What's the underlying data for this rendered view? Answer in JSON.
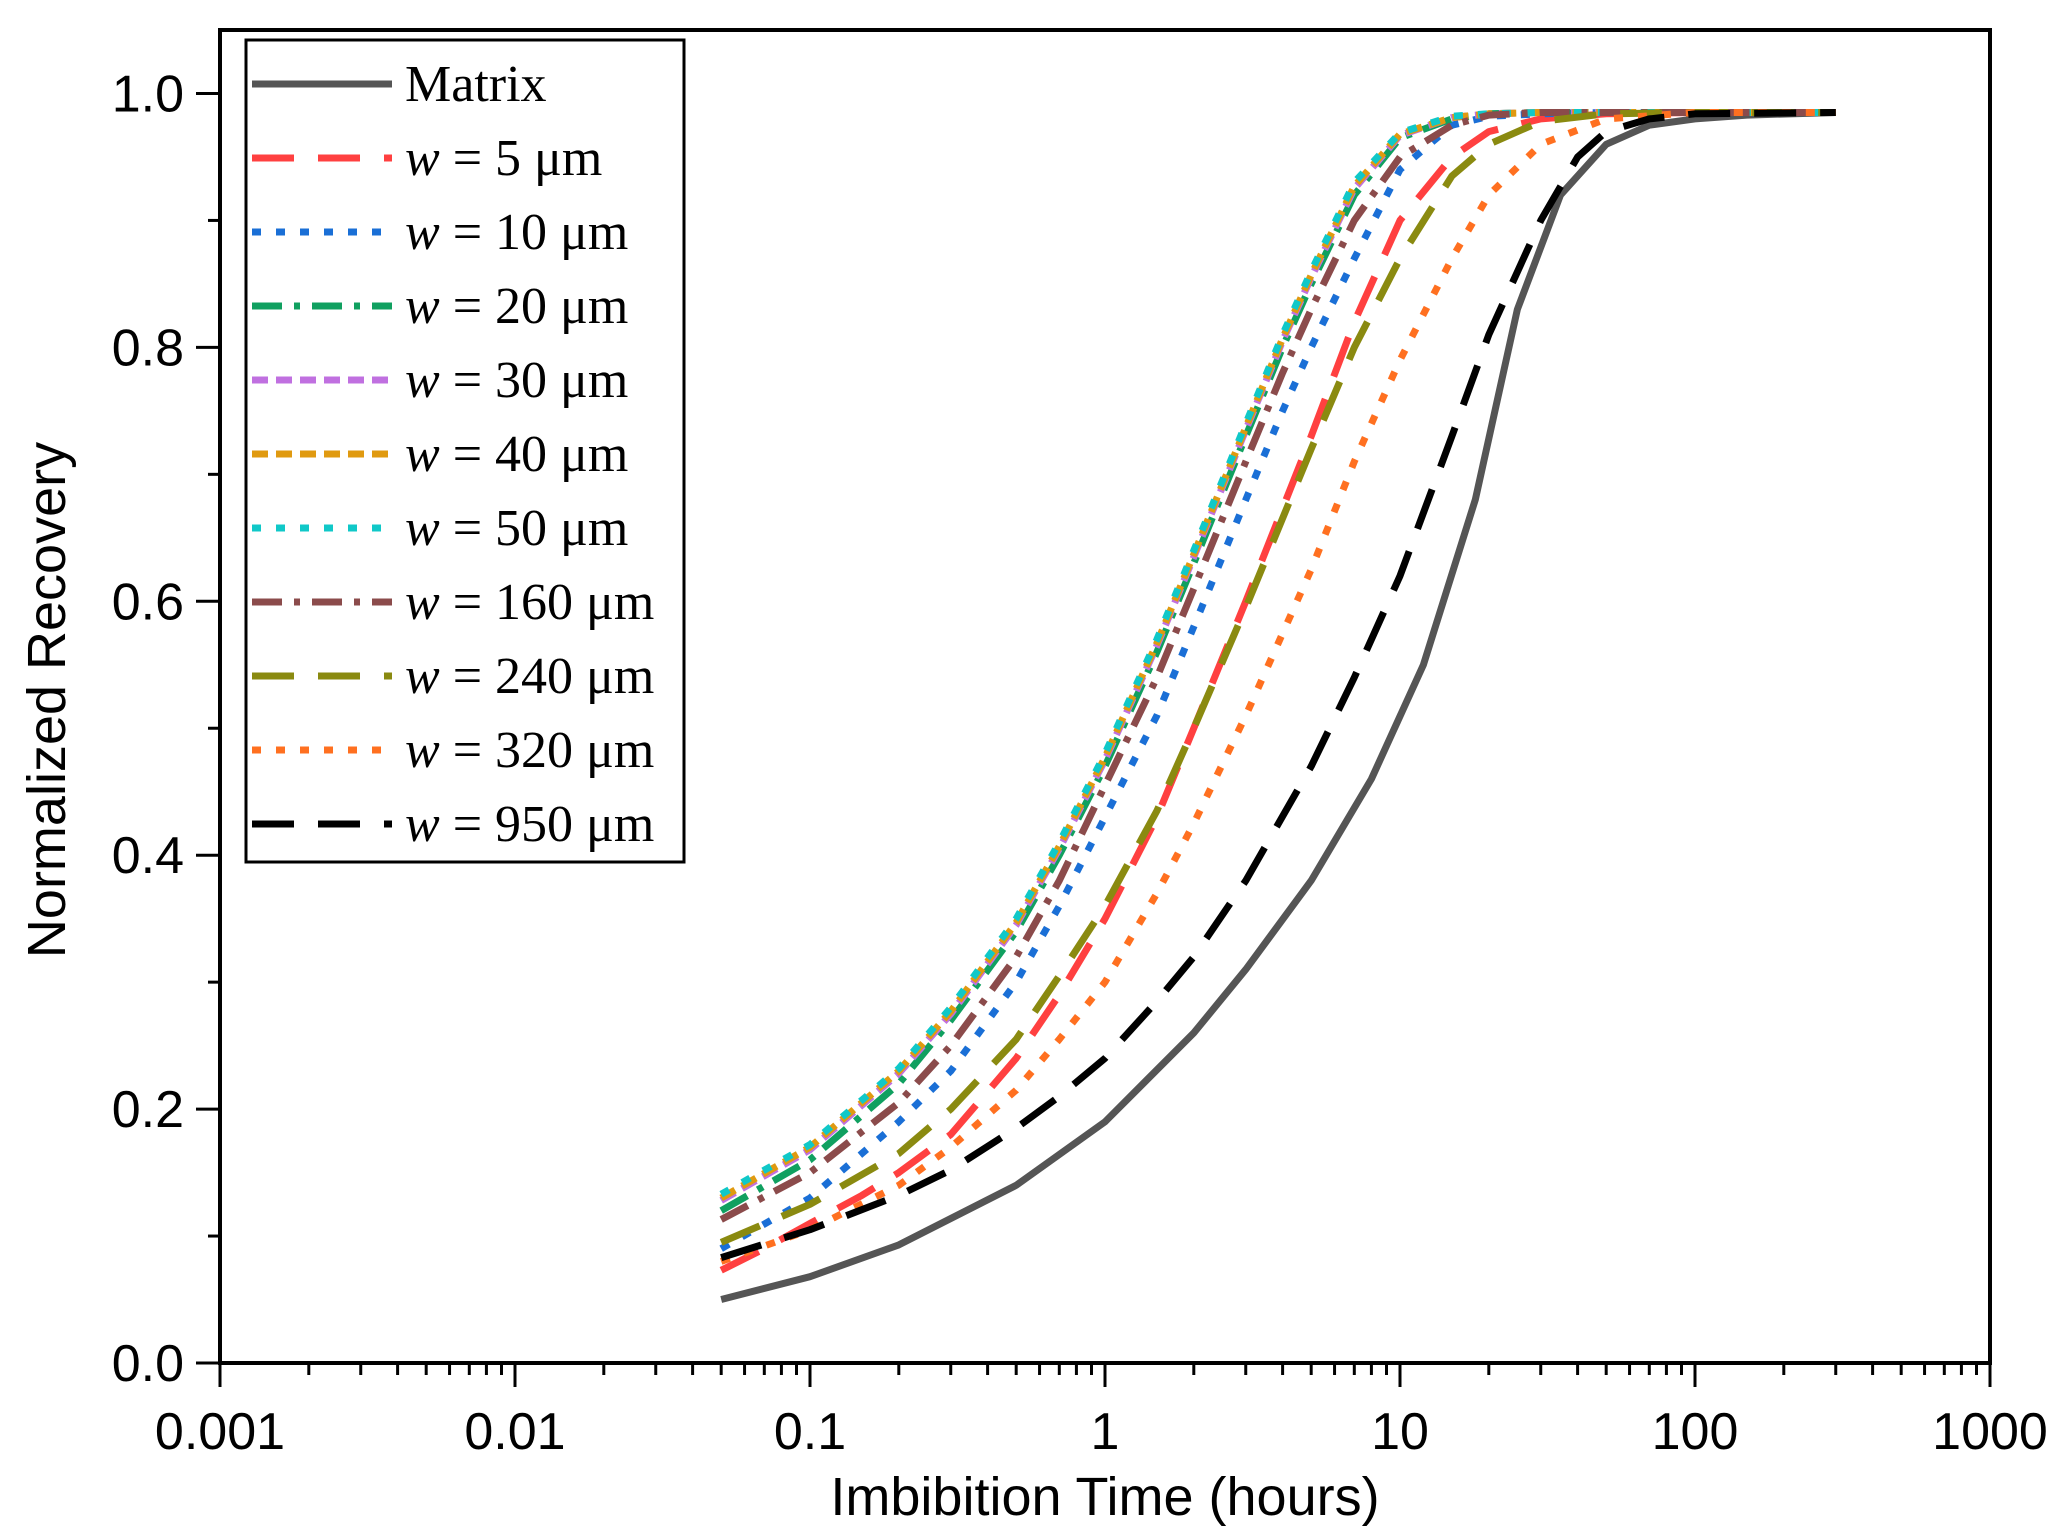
{
  "chart_data": {
    "type": "line",
    "title": "",
    "xlabel": "Imbibition Time (hours)",
    "ylabel": "Normalized Recovery",
    "xscale": "log",
    "xlim": [
      0.001,
      1000
    ],
    "ylim": [
      0.0,
      1.05
    ],
    "xticks": [
      0.001,
      0.01,
      0.1,
      1,
      10,
      100,
      1000
    ],
    "xtick_labels": [
      "0.001",
      "0.01",
      "0.1",
      "1",
      "10",
      "100",
      "1000"
    ],
    "yticks": [
      0.0,
      0.2,
      0.4,
      0.6,
      0.8,
      1.0
    ],
    "ytick_labels": [
      "0.0",
      "0.2",
      "0.4",
      "0.6",
      "0.8",
      "1.0"
    ],
    "grid": false,
    "legend_position": "top-left",
    "series": [
      {
        "name": "Matrix",
        "name_prefix": "",
        "name_suffix": "Matrix",
        "color": "#555555",
        "dash": "solid",
        "x": [
          0.05,
          0.1,
          0.2,
          0.5,
          1,
          2,
          3,
          5,
          8,
          12,
          18,
          25,
          35,
          50,
          70,
          100,
          150,
          300
        ],
        "y": [
          0.05,
          0.068,
          0.093,
          0.14,
          0.19,
          0.26,
          0.31,
          0.38,
          0.46,
          0.55,
          0.68,
          0.83,
          0.92,
          0.96,
          0.975,
          0.98,
          0.983,
          0.985
        ]
      },
      {
        "name": "w = 5 μm",
        "name_prefix": "w",
        "name_suffix": " = 5 μm",
        "color": "#ff4040",
        "dash": "long",
        "x": [
          0.05,
          0.07,
          0.1,
          0.15,
          0.2,
          0.3,
          0.5,
          0.7,
          1,
          1.5,
          2,
          3,
          5,
          7,
          10,
          15,
          20,
          30,
          50,
          100,
          300
        ],
        "y": [
          0.073,
          0.09,
          0.11,
          0.132,
          0.15,
          0.18,
          0.24,
          0.29,
          0.35,
          0.43,
          0.5,
          0.6,
          0.73,
          0.82,
          0.9,
          0.95,
          0.97,
          0.98,
          0.984,
          0.985,
          0.985
        ]
      },
      {
        "name": "w = 10 μm",
        "name_prefix": "w",
        "name_suffix": " = 10 μm",
        "color": "#1a6fd6",
        "dash": "dot",
        "x": [
          0.05,
          0.1,
          0.2,
          0.3,
          0.5,
          0.7,
          1,
          1.5,
          2,
          3,
          4,
          5,
          7,
          10,
          15,
          20,
          30,
          50,
          100,
          300
        ],
        "y": [
          0.09,
          0.13,
          0.19,
          0.23,
          0.3,
          0.36,
          0.43,
          0.51,
          0.58,
          0.68,
          0.75,
          0.8,
          0.87,
          0.94,
          0.975,
          0.982,
          0.984,
          0.985,
          0.985,
          0.985
        ]
      },
      {
        "name": "w = 20 μm",
        "name_prefix": "w",
        "name_suffix": " = 20 μm",
        "color": "#10a060",
        "dash": "dashdot",
        "x": [
          0.05,
          0.1,
          0.2,
          0.3,
          0.5,
          0.7,
          1,
          1.5,
          2,
          3,
          4,
          5,
          7,
          10,
          15,
          20,
          30,
          50,
          100,
          300
        ],
        "y": [
          0.12,
          0.16,
          0.22,
          0.27,
          0.34,
          0.4,
          0.47,
          0.56,
          0.63,
          0.73,
          0.8,
          0.85,
          0.92,
          0.965,
          0.98,
          0.984,
          0.985,
          0.985,
          0.985,
          0.985
        ]
      },
      {
        "name": "w = 30 μm",
        "name_prefix": "w",
        "name_suffix": " = 30 μm",
        "color": "#c070e0",
        "dash": "shortdash",
        "x": [
          0.05,
          0.1,
          0.2,
          0.3,
          0.5,
          0.7,
          1,
          1.5,
          2,
          3,
          4,
          5,
          7,
          10,
          15,
          20,
          30,
          50,
          100,
          300
        ],
        "y": [
          0.128,
          0.168,
          0.228,
          0.275,
          0.345,
          0.405,
          0.475,
          0.565,
          0.635,
          0.735,
          0.805,
          0.855,
          0.925,
          0.967,
          0.981,
          0.984,
          0.985,
          0.985,
          0.985,
          0.985
        ]
      },
      {
        "name": "w = 40 μm",
        "name_prefix": "w",
        "name_suffix": " = 40 μm",
        "color": "#e09a10",
        "dash": "shortdash",
        "x": [
          0.05,
          0.1,
          0.2,
          0.3,
          0.5,
          0.7,
          1,
          1.5,
          2,
          3,
          4,
          5,
          7,
          10,
          15,
          20,
          30,
          50,
          100,
          300
        ],
        "y": [
          0.13,
          0.17,
          0.23,
          0.277,
          0.347,
          0.407,
          0.477,
          0.567,
          0.637,
          0.737,
          0.807,
          0.857,
          0.927,
          0.968,
          0.981,
          0.984,
          0.985,
          0.985,
          0.985,
          0.985
        ]
      },
      {
        "name": "w = 50 μm",
        "name_prefix": "w",
        "name_suffix": " = 50 μm",
        "color": "#10c8c8",
        "dash": "dot",
        "x": [
          0.05,
          0.1,
          0.2,
          0.3,
          0.5,
          0.7,
          1,
          1.5,
          2,
          3,
          4,
          5,
          7,
          10,
          15,
          20,
          30,
          50,
          100,
          300
        ],
        "y": [
          0.133,
          0.172,
          0.232,
          0.28,
          0.35,
          0.41,
          0.48,
          0.57,
          0.64,
          0.74,
          0.81,
          0.86,
          0.93,
          0.969,
          0.982,
          0.984,
          0.985,
          0.985,
          0.985,
          0.985
        ]
      },
      {
        "name": "w = 160 μm",
        "name_prefix": "w",
        "name_suffix": " = 160 μm",
        "color": "#8b4b4b",
        "dash": "dashdot",
        "x": [
          0.05,
          0.1,
          0.2,
          0.3,
          0.5,
          0.7,
          1,
          1.5,
          2,
          3,
          4,
          5,
          7,
          10,
          15,
          20,
          30,
          50,
          100,
          300
        ],
        "y": [
          0.113,
          0.15,
          0.205,
          0.25,
          0.32,
          0.38,
          0.455,
          0.54,
          0.61,
          0.71,
          0.78,
          0.83,
          0.9,
          0.95,
          0.975,
          0.983,
          0.985,
          0.985,
          0.985,
          0.985
        ]
      },
      {
        "name": "w = 240 μm",
        "name_prefix": "w",
        "name_suffix": " = 240 μm",
        "color": "#8a8a10",
        "dash": "long",
        "x": [
          0.05,
          0.1,
          0.2,
          0.3,
          0.5,
          0.7,
          1,
          1.5,
          2,
          3,
          5,
          7,
          10,
          15,
          20,
          30,
          50,
          100,
          300
        ],
        "y": [
          0.095,
          0.125,
          0.165,
          0.2,
          0.255,
          0.305,
          0.36,
          0.435,
          0.5,
          0.595,
          0.72,
          0.8,
          0.87,
          0.935,
          0.96,
          0.978,
          0.984,
          0.985,
          0.985
        ]
      },
      {
        "name": "w = 320 μm",
        "name_prefix": "w",
        "name_suffix": " = 320 μm",
        "color": "#ff7020",
        "dash": "dot",
        "x": [
          0.05,
          0.1,
          0.2,
          0.3,
          0.5,
          0.7,
          1,
          1.5,
          2,
          3,
          5,
          7,
          10,
          15,
          20,
          30,
          50,
          100,
          300
        ],
        "y": [
          0.08,
          0.105,
          0.14,
          0.17,
          0.215,
          0.255,
          0.3,
          0.37,
          0.425,
          0.51,
          0.625,
          0.71,
          0.79,
          0.87,
          0.92,
          0.96,
          0.98,
          0.985,
          0.985
        ]
      },
      {
        "name": "w = 950 μm",
        "name_prefix": "w",
        "name_suffix": " = 950 μm",
        "color": "#000000",
        "dash": "long",
        "x": [
          0.05,
          0.1,
          0.2,
          0.3,
          0.5,
          0.7,
          1,
          1.5,
          2,
          3,
          5,
          7,
          10,
          15,
          20,
          30,
          40,
          50,
          70,
          100,
          300
        ],
        "y": [
          0.083,
          0.105,
          0.132,
          0.152,
          0.185,
          0.21,
          0.24,
          0.285,
          0.32,
          0.38,
          0.47,
          0.54,
          0.62,
          0.73,
          0.81,
          0.9,
          0.95,
          0.97,
          0.98,
          0.984,
          0.985
        ]
      }
    ]
  }
}
